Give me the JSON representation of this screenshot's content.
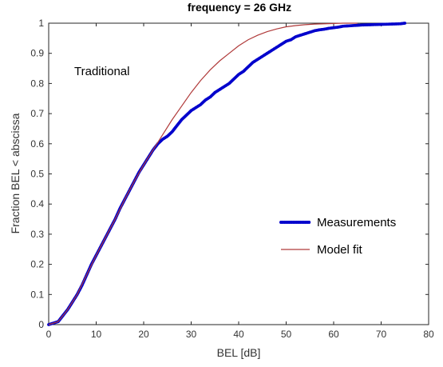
{
  "chart_data": {
    "type": "line",
    "title": "frequency = 26 GHz",
    "xlabel": "BEL [dB]",
    "ylabel": "Fraction BEL < abscissa",
    "xlim": [
      0,
      80
    ],
    "ylim": [
      0,
      1
    ],
    "xticks": [
      "0",
      "10",
      "20",
      "30",
      "40",
      "50",
      "60",
      "70",
      "80"
    ],
    "yticks": [
      "0",
      "0.1",
      "0.2",
      "0.3",
      "0.4",
      "0.5",
      "0.6",
      "0.7",
      "0.8",
      "0.9",
      "1"
    ],
    "grid": false,
    "legend_position": "center-right",
    "annotation": "Traditional",
    "series": [
      {
        "name": "Measurements",
        "style": "dotted-markers",
        "color": "#0000cc",
        "points": [
          [
            0,
            0
          ],
          [
            1,
            0.005
          ],
          [
            2,
            0.01
          ],
          [
            3,
            0.03
          ],
          [
            4,
            0.05
          ],
          [
            5,
            0.075
          ],
          [
            6,
            0.1
          ],
          [
            7,
            0.13
          ],
          [
            8,
            0.165
          ],
          [
            9,
            0.2
          ],
          [
            10,
            0.23
          ],
          [
            11,
            0.26
          ],
          [
            12,
            0.29
          ],
          [
            13,
            0.32
          ],
          [
            14,
            0.35
          ],
          [
            15,
            0.385
          ],
          [
            16,
            0.415
          ],
          [
            17,
            0.445
          ],
          [
            18,
            0.475
          ],
          [
            19,
            0.505
          ],
          [
            20,
            0.53
          ],
          [
            21,
            0.555
          ],
          [
            22,
            0.58
          ],
          [
            23,
            0.6
          ],
          [
            24,
            0.615
          ],
          [
            25,
            0.625
          ],
          [
            26,
            0.64
          ],
          [
            27,
            0.66
          ],
          [
            28,
            0.68
          ],
          [
            29,
            0.695
          ],
          [
            30,
            0.71
          ],
          [
            31,
            0.72
          ],
          [
            32,
            0.73
          ],
          [
            33,
            0.745
          ],
          [
            34,
            0.755
          ],
          [
            35,
            0.77
          ],
          [
            36,
            0.78
          ],
          [
            37,
            0.79
          ],
          [
            38,
            0.8
          ],
          [
            39,
            0.815
          ],
          [
            40,
            0.83
          ],
          [
            41,
            0.84
          ],
          [
            42,
            0.855
          ],
          [
            43,
            0.87
          ],
          [
            44,
            0.88
          ],
          [
            45,
            0.89
          ],
          [
            46,
            0.9
          ],
          [
            47,
            0.91
          ],
          [
            48,
            0.92
          ],
          [
            49,
            0.93
          ],
          [
            50,
            0.94
          ],
          [
            51,
            0.945
          ],
          [
            52,
            0.955
          ],
          [
            53,
            0.96
          ],
          [
            54,
            0.965
          ],
          [
            55,
            0.97
          ],
          [
            56,
            0.975
          ],
          [
            57,
            0.978
          ],
          [
            58,
            0.98
          ],
          [
            59,
            0.983
          ],
          [
            60,
            0.985
          ],
          [
            61,
            0.987
          ],
          [
            62,
            0.99
          ],
          [
            64,
            0.992
          ],
          [
            66,
            0.994
          ],
          [
            68,
            0.995
          ],
          [
            70,
            0.996
          ],
          [
            72,
            0.997
          ],
          [
            74,
            0.998
          ],
          [
            75,
            1.0
          ]
        ]
      },
      {
        "name": "Model fit",
        "style": "line",
        "color": "#b03a3a",
        "points": [
          [
            0,
            0
          ],
          [
            2,
            0.01
          ],
          [
            4,
            0.05
          ],
          [
            6,
            0.1
          ],
          [
            8,
            0.165
          ],
          [
            10,
            0.23
          ],
          [
            12,
            0.29
          ],
          [
            14,
            0.35
          ],
          [
            16,
            0.415
          ],
          [
            18,
            0.475
          ],
          [
            20,
            0.53
          ],
          [
            22,
            0.58
          ],
          [
            24,
            0.63
          ],
          [
            26,
            0.68
          ],
          [
            28,
            0.725
          ],
          [
            30,
            0.77
          ],
          [
            32,
            0.81
          ],
          [
            34,
            0.845
          ],
          [
            36,
            0.875
          ],
          [
            38,
            0.9
          ],
          [
            40,
            0.925
          ],
          [
            42,
            0.945
          ],
          [
            44,
            0.96
          ],
          [
            46,
            0.972
          ],
          [
            48,
            0.981
          ],
          [
            50,
            0.988
          ],
          [
            52,
            0.992
          ],
          [
            54,
            0.995
          ],
          [
            56,
            0.997
          ],
          [
            58,
            0.998
          ],
          [
            60,
            0.999
          ],
          [
            62,
            1.0
          ],
          [
            65,
            1.0
          ]
        ]
      }
    ]
  }
}
